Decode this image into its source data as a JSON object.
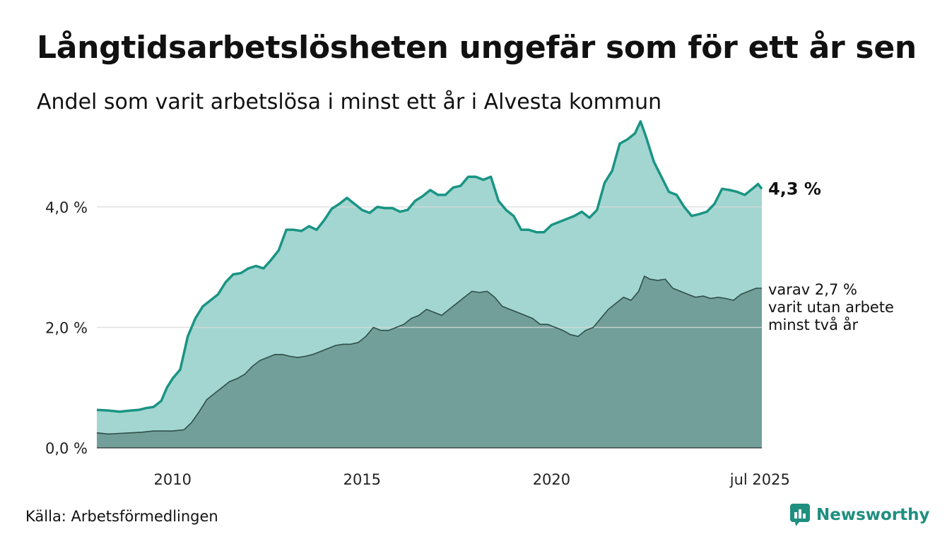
{
  "header": {
    "title": "Långtidsarbetslösheten ungefär som för ett år sen",
    "subtitle": "Andel som varit arbetslösa i minst ett år i Alvesta kommun"
  },
  "footer": {
    "source": "Källa: Arbetsförmedlingen",
    "brand": "Newsworthy"
  },
  "colors": {
    "total_line": "#1a9484",
    "total_fill": "#a3d6d0",
    "longterm_fill": "#729f99",
    "longterm_line": "#2f4f4a",
    "grid": "#d9d9d9",
    "brand": "#1f8f7f"
  },
  "chart_data": {
    "type": "area",
    "ylim": [
      0,
      5.5
    ],
    "xlim": [
      2008.0,
      2025.55
    ],
    "y_ticks": [
      {
        "value": 0,
        "label": "0,0 %"
      },
      {
        "value": 2,
        "label": "2,0 %"
      },
      {
        "value": 4,
        "label": "4,0 %"
      }
    ],
    "x_ticks": [
      {
        "value": 2010,
        "label": "2010"
      },
      {
        "value": 2015,
        "label": "2015"
      },
      {
        "value": 2020,
        "label": "2020"
      },
      {
        "value": 2025.5,
        "label": "jul 2025"
      }
    ],
    "grid": true,
    "series": [
      {
        "key": "total",
        "end_label": "4,3 %",
        "points": [
          [
            2008.0,
            0.63
          ],
          [
            2008.3,
            0.62
          ],
          [
            2008.6,
            0.6
          ],
          [
            2008.9,
            0.62
          ],
          [
            2009.1,
            0.63
          ],
          [
            2009.3,
            0.66
          ],
          [
            2009.5,
            0.68
          ],
          [
            2009.7,
            0.78
          ],
          [
            2009.85,
            1.0
          ],
          [
            2010.0,
            1.15
          ],
          [
            2010.2,
            1.3
          ],
          [
            2010.4,
            1.85
          ],
          [
            2010.6,
            2.15
          ],
          [
            2010.8,
            2.35
          ],
          [
            2011.0,
            2.45
          ],
          [
            2011.2,
            2.55
          ],
          [
            2011.4,
            2.75
          ],
          [
            2011.6,
            2.88
          ],
          [
            2011.8,
            2.9
          ],
          [
            2012.0,
            2.98
          ],
          [
            2012.2,
            3.02
          ],
          [
            2012.4,
            2.98
          ],
          [
            2012.6,
            3.12
          ],
          [
            2012.8,
            3.28
          ],
          [
            2013.0,
            3.62
          ],
          [
            2013.2,
            3.62
          ],
          [
            2013.4,
            3.6
          ],
          [
            2013.6,
            3.68
          ],
          [
            2013.8,
            3.62
          ],
          [
            2014.0,
            3.78
          ],
          [
            2014.2,
            3.97
          ],
          [
            2014.4,
            4.05
          ],
          [
            2014.6,
            4.15
          ],
          [
            2014.8,
            4.05
          ],
          [
            2015.0,
            3.95
          ],
          [
            2015.2,
            3.9
          ],
          [
            2015.4,
            4.0
          ],
          [
            2015.6,
            3.98
          ],
          [
            2015.8,
            3.98
          ],
          [
            2016.0,
            3.92
          ],
          [
            2016.2,
            3.95
          ],
          [
            2016.4,
            4.1
          ],
          [
            2016.6,
            4.18
          ],
          [
            2016.8,
            4.28
          ],
          [
            2017.0,
            4.2
          ],
          [
            2017.2,
            4.2
          ],
          [
            2017.4,
            4.32
          ],
          [
            2017.6,
            4.35
          ],
          [
            2017.8,
            4.5
          ],
          [
            2018.0,
            4.5
          ],
          [
            2018.2,
            4.45
          ],
          [
            2018.4,
            4.5
          ],
          [
            2018.6,
            4.1
          ],
          [
            2018.8,
            3.95
          ],
          [
            2019.0,
            3.85
          ],
          [
            2019.2,
            3.62
          ],
          [
            2019.4,
            3.62
          ],
          [
            2019.6,
            3.58
          ],
          [
            2019.8,
            3.58
          ],
          [
            2020.0,
            3.7
          ],
          [
            2020.2,
            3.75
          ],
          [
            2020.4,
            3.8
          ],
          [
            2020.6,
            3.85
          ],
          [
            2020.8,
            3.92
          ],
          [
            2021.0,
            3.82
          ],
          [
            2021.2,
            3.95
          ],
          [
            2021.4,
            4.4
          ],
          [
            2021.6,
            4.6
          ],
          [
            2021.8,
            5.05
          ],
          [
            2022.0,
            5.12
          ],
          [
            2022.2,
            5.22
          ],
          [
            2022.35,
            5.42
          ],
          [
            2022.5,
            5.15
          ],
          [
            2022.7,
            4.75
          ],
          [
            2022.9,
            4.5
          ],
          [
            2023.1,
            4.25
          ],
          [
            2023.3,
            4.2
          ],
          [
            2023.5,
            4.0
          ],
          [
            2023.7,
            3.85
          ],
          [
            2023.9,
            3.88
          ],
          [
            2024.1,
            3.92
          ],
          [
            2024.3,
            4.05
          ],
          [
            2024.5,
            4.3
          ],
          [
            2024.7,
            4.28
          ],
          [
            2024.9,
            4.25
          ],
          [
            2025.1,
            4.2
          ],
          [
            2025.3,
            4.3
          ],
          [
            2025.45,
            4.38
          ],
          [
            2025.55,
            4.3
          ]
        ]
      },
      {
        "key": "longterm",
        "end_label_lines": [
          "varav 2,7 %",
          "varit utan arbete",
          "minst två år"
        ],
        "points": [
          [
            2008.0,
            0.25
          ],
          [
            2008.3,
            0.23
          ],
          [
            2008.6,
            0.24
          ],
          [
            2008.9,
            0.25
          ],
          [
            2009.2,
            0.26
          ],
          [
            2009.5,
            0.28
          ],
          [
            2009.8,
            0.28
          ],
          [
            2010.0,
            0.28
          ],
          [
            2010.3,
            0.3
          ],
          [
            2010.5,
            0.42
          ],
          [
            2010.7,
            0.6
          ],
          [
            2010.9,
            0.8
          ],
          [
            2011.1,
            0.9
          ],
          [
            2011.3,
            1.0
          ],
          [
            2011.5,
            1.1
          ],
          [
            2011.7,
            1.15
          ],
          [
            2011.9,
            1.22
          ],
          [
            2012.1,
            1.35
          ],
          [
            2012.3,
            1.45
          ],
          [
            2012.5,
            1.5
          ],
          [
            2012.7,
            1.55
          ],
          [
            2012.9,
            1.55
          ],
          [
            2013.1,
            1.52
          ],
          [
            2013.3,
            1.5
          ],
          [
            2013.5,
            1.52
          ],
          [
            2013.7,
            1.55
          ],
          [
            2013.9,
            1.6
          ],
          [
            2014.1,
            1.65
          ],
          [
            2014.3,
            1.7
          ],
          [
            2014.5,
            1.72
          ],
          [
            2014.7,
            1.72
          ],
          [
            2014.9,
            1.75
          ],
          [
            2015.1,
            1.85
          ],
          [
            2015.3,
            2.0
          ],
          [
            2015.5,
            1.95
          ],
          [
            2015.7,
            1.95
          ],
          [
            2015.9,
            2.0
          ],
          [
            2016.1,
            2.05
          ],
          [
            2016.3,
            2.15
          ],
          [
            2016.5,
            2.2
          ],
          [
            2016.7,
            2.3
          ],
          [
            2016.9,
            2.25
          ],
          [
            2017.1,
            2.2
          ],
          [
            2017.3,
            2.3
          ],
          [
            2017.5,
            2.4
          ],
          [
            2017.7,
            2.5
          ],
          [
            2017.9,
            2.6
          ],
          [
            2018.1,
            2.58
          ],
          [
            2018.3,
            2.6
          ],
          [
            2018.5,
            2.5
          ],
          [
            2018.7,
            2.35
          ],
          [
            2018.9,
            2.3
          ],
          [
            2019.1,
            2.25
          ],
          [
            2019.3,
            2.2
          ],
          [
            2019.5,
            2.15
          ],
          [
            2019.7,
            2.05
          ],
          [
            2019.9,
            2.05
          ],
          [
            2020.1,
            2.0
          ],
          [
            2020.3,
            1.95
          ],
          [
            2020.5,
            1.88
          ],
          [
            2020.7,
            1.85
          ],
          [
            2020.9,
            1.95
          ],
          [
            2021.1,
            2.0
          ],
          [
            2021.3,
            2.15
          ],
          [
            2021.5,
            2.3
          ],
          [
            2021.7,
            2.4
          ],
          [
            2021.9,
            2.5
          ],
          [
            2022.1,
            2.45
          ],
          [
            2022.3,
            2.6
          ],
          [
            2022.45,
            2.85
          ],
          [
            2022.6,
            2.8
          ],
          [
            2022.8,
            2.78
          ],
          [
            2023.0,
            2.8
          ],
          [
            2023.2,
            2.65
          ],
          [
            2023.4,
            2.6
          ],
          [
            2023.6,
            2.55
          ],
          [
            2023.8,
            2.5
          ],
          [
            2024.0,
            2.52
          ],
          [
            2024.2,
            2.48
          ],
          [
            2024.4,
            2.5
          ],
          [
            2024.6,
            2.48
          ],
          [
            2024.8,
            2.45
          ],
          [
            2025.0,
            2.55
          ],
          [
            2025.2,
            2.6
          ],
          [
            2025.4,
            2.65
          ],
          [
            2025.55,
            2.65
          ]
        ]
      }
    ]
  }
}
